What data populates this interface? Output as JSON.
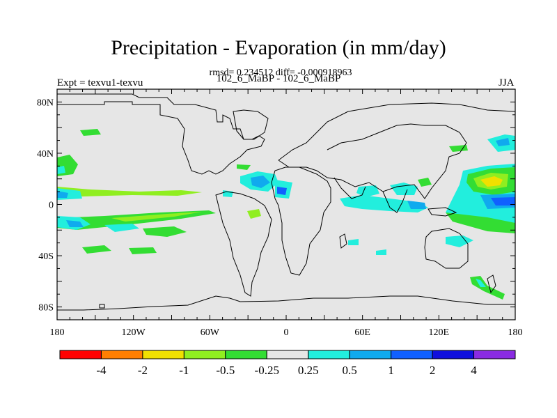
{
  "title": "Precipitation - Evaporation (in mm/day)",
  "stats_line": "rmsd= 0.234512 diff= -0.000918963",
  "experiment_label": "Expt = texvu1-texvu",
  "subtitle": "102_6_MaBP - 102_6_MaBP",
  "season": "JJA",
  "x_axis_ticks": [
    "180",
    "120W",
    "60W",
    "0",
    "60E",
    "120E",
    "180"
  ],
  "y_axis_ticks": [
    "80N",
    "40N",
    "0",
    "40S",
    "80S"
  ],
  "colorbar": {
    "colors": [
      "#ff0000",
      "#ff7f00",
      "#f0e000",
      "#90ee20",
      "#33dd33",
      "#e6e6e6",
      "#22eedd",
      "#10aaee",
      "#1060ff",
      "#1010dd",
      "#8a2be2"
    ],
    "labels": [
      "-4",
      "-2",
      "-1",
      "-0.5",
      "-0.25",
      "0.25",
      "0.5",
      "1",
      "2",
      "4"
    ]
  }
}
